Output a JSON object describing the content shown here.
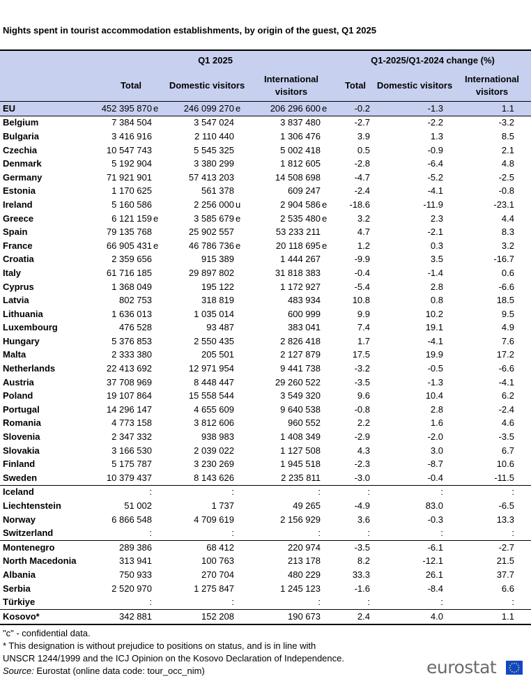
{
  "title": "Nights spent in tourist accommodation establishments, by origin of the guest, Q1 2025",
  "header": {
    "group1": "Q1 2025",
    "group2": "Q1-2025/Q1-2024 change  (%)",
    "columns": [
      "Total",
      "Domestic visitors",
      "International visitors",
      "Total",
      "Domestic visitors",
      "International visitors"
    ]
  },
  "rows": [
    {
      "country": "EU",
      "total": "452 395 870",
      "total_flag": "e",
      "dom": "246 099 270",
      "dom_flag": "e",
      "int": "206 296 600",
      "int_flag": "e",
      "ctot": "-0.2",
      "cdom": "-1.3",
      "cint": "1.1"
    },
    {
      "country": "Belgium",
      "total": "7 384 504",
      "total_flag": "",
      "dom": "3 547 024",
      "dom_flag": "",
      "int": "3 837 480",
      "int_flag": "",
      "ctot": "-2.7",
      "cdom": "-2.2",
      "cint": "-3.2"
    },
    {
      "country": "Bulgaria",
      "total": "3 416 916",
      "total_flag": "",
      "dom": "2 110 440",
      "dom_flag": "",
      "int": "1 306 476",
      "int_flag": "",
      "ctot": "3.9",
      "cdom": "1.3",
      "cint": "8.5"
    },
    {
      "country": "Czechia",
      "total": "10 547 743",
      "total_flag": "",
      "dom": "5 545 325",
      "dom_flag": "",
      "int": "5 002 418",
      "int_flag": "",
      "ctot": "0.5",
      "cdom": "-0.9",
      "cint": "2.1"
    },
    {
      "country": "Denmark",
      "total": "5 192 904",
      "total_flag": "",
      "dom": "3 380 299",
      "dom_flag": "",
      "int": "1 812 605",
      "int_flag": "",
      "ctot": "-2.8",
      "cdom": "-6.4",
      "cint": "4.8"
    },
    {
      "country": "Germany",
      "total": "71 921 901",
      "total_flag": "",
      "dom": "57 413 203",
      "dom_flag": "",
      "int": "14 508 698",
      "int_flag": "",
      "ctot": "-4.7",
      "cdom": "-5.2",
      "cint": "-2.5"
    },
    {
      "country": "Estonia",
      "total": "1 170 625",
      "total_flag": "",
      "dom": "561 378",
      "dom_flag": "",
      "int": "609 247",
      "int_flag": "",
      "ctot": "-2.4",
      "cdom": "-4.1",
      "cint": "-0.8"
    },
    {
      "country": "Ireland",
      "total": "5 160 586",
      "total_flag": "",
      "dom": "2 256 000",
      "dom_flag": "u",
      "int": "2 904 586",
      "int_flag": "e",
      "ctot": "-18.6",
      "cdom": "-11.9",
      "cint": "-23.1"
    },
    {
      "country": "Greece",
      "total": "6 121 159",
      "total_flag": "e",
      "dom": "3 585 679",
      "dom_flag": "e",
      "int": "2 535 480",
      "int_flag": "e",
      "ctot": "3.2",
      "cdom": "2.3",
      "cint": "4.4"
    },
    {
      "country": "Spain",
      "total": "79 135 768",
      "total_flag": "",
      "dom": "25 902 557",
      "dom_flag": "",
      "int": "53 233 211",
      "int_flag": "",
      "ctot": "4.7",
      "cdom": "-2.1",
      "cint": "8.3"
    },
    {
      "country": "France",
      "total": "66 905 431",
      "total_flag": "e",
      "dom": "46 786 736",
      "dom_flag": "e",
      "int": "20 118 695",
      "int_flag": "e",
      "ctot": "1.2",
      "cdom": "0.3",
      "cint": "3.2"
    },
    {
      "country": "Croatia",
      "total": "2 359 656",
      "total_flag": "",
      "dom": "915 389",
      "dom_flag": "",
      "int": "1 444 267",
      "int_flag": "",
      "ctot": "-9.9",
      "cdom": "3.5",
      "cint": "-16.7"
    },
    {
      "country": "Italy",
      "total": "61 716 185",
      "total_flag": "",
      "dom": "29 897 802",
      "dom_flag": "",
      "int": "31 818 383",
      "int_flag": "",
      "ctot": "-0.4",
      "cdom": "-1.4",
      "cint": "0.6"
    },
    {
      "country": "Cyprus",
      "total": "1 368 049",
      "total_flag": "",
      "dom": "195 122",
      "dom_flag": "",
      "int": "1 172 927",
      "int_flag": "",
      "ctot": "-5.4",
      "cdom": "2.8",
      "cint": "-6.6"
    },
    {
      "country": "Latvia",
      "total": "802 753",
      "total_flag": "",
      "dom": "318 819",
      "dom_flag": "",
      "int": "483 934",
      "int_flag": "",
      "ctot": "10.8",
      "cdom": "0.8",
      "cint": "18.5"
    },
    {
      "country": "Lithuania",
      "total": "1 636 013",
      "total_flag": "",
      "dom": "1 035 014",
      "dom_flag": "",
      "int": "600 999",
      "int_flag": "",
      "ctot": "9.9",
      "cdom": "10.2",
      "cint": "9.5"
    },
    {
      "country": "Luxembourg",
      "total": "476 528",
      "total_flag": "",
      "dom": "93 487",
      "dom_flag": "",
      "int": "383 041",
      "int_flag": "",
      "ctot": "7.4",
      "cdom": "19.1",
      "cint": "4.9"
    },
    {
      "country": "Hungary",
      "total": "5 376 853",
      "total_flag": "",
      "dom": "2 550 435",
      "dom_flag": "",
      "int": "2 826 418",
      "int_flag": "",
      "ctot": "1.7",
      "cdom": "-4.1",
      "cint": "7.6"
    },
    {
      "country": "Malta",
      "total": "2 333 380",
      "total_flag": "",
      "dom": "205 501",
      "dom_flag": "",
      "int": "2 127 879",
      "int_flag": "",
      "ctot": "17.5",
      "cdom": "19.9",
      "cint": "17.2"
    },
    {
      "country": "Netherlands",
      "total": "22 413 692",
      "total_flag": "",
      "dom": "12 971 954",
      "dom_flag": "",
      "int": "9 441 738",
      "int_flag": "",
      "ctot": "-3.2",
      "cdom": "-0.5",
      "cint": "-6.6"
    },
    {
      "country": "Austria",
      "total": "37 708 969",
      "total_flag": "",
      "dom": "8 448 447",
      "dom_flag": "",
      "int": "29 260 522",
      "int_flag": "",
      "ctot": "-3.5",
      "cdom": "-1.3",
      "cint": "-4.1"
    },
    {
      "country": "Poland",
      "total": "19 107 864",
      "total_flag": "",
      "dom": "15 558 544",
      "dom_flag": "",
      "int": "3 549 320",
      "int_flag": "",
      "ctot": "9.6",
      "cdom": "10.4",
      "cint": "6.2"
    },
    {
      "country": "Portugal",
      "total": "14 296 147",
      "total_flag": "",
      "dom": "4 655 609",
      "dom_flag": "",
      "int": "9 640 538",
      "int_flag": "",
      "ctot": "-0.8",
      "cdom": "2.8",
      "cint": "-2.4"
    },
    {
      "country": "Romania",
      "total": "4 773 158",
      "total_flag": "",
      "dom": "3 812 606",
      "dom_flag": "",
      "int": "960 552",
      "int_flag": "",
      "ctot": "2.2",
      "cdom": "1.6",
      "cint": "4.6"
    },
    {
      "country": "Slovenia",
      "total": "2 347 332",
      "total_flag": "",
      "dom": "938 983",
      "dom_flag": "",
      "int": "1 408 349",
      "int_flag": "",
      "ctot": "-2.9",
      "cdom": "-2.0",
      "cint": "-3.5"
    },
    {
      "country": "Slovakia",
      "total": "3 166 530",
      "total_flag": "",
      "dom": "2 039 022",
      "dom_flag": "",
      "int": "1 127 508",
      "int_flag": "",
      "ctot": "4.3",
      "cdom": "3.0",
      "cint": "6.7"
    },
    {
      "country": "Finland",
      "total": "5 175 787",
      "total_flag": "",
      "dom": "3 230 269",
      "dom_flag": "",
      "int": "1 945 518",
      "int_flag": "",
      "ctot": "-2.3",
      "cdom": "-8.7",
      "cint": "10.6"
    },
    {
      "country": "Sweden",
      "total": "10 379 437",
      "total_flag": "",
      "dom": "8 143 626",
      "dom_flag": "",
      "int": "2 235 811",
      "int_flag": "",
      "ctot": "-3.0",
      "cdom": "-0.4",
      "cint": "-11.5"
    },
    {
      "country": "Iceland",
      "total": ":",
      "total_flag": "",
      "dom": ":",
      "dom_flag": "",
      "int": ":",
      "int_flag": "",
      "ctot": ":",
      "cdom": ":",
      "cint": ":"
    },
    {
      "country": "Liechtenstein",
      "total": "51 002",
      "total_flag": "",
      "dom": "1 737",
      "dom_flag": "",
      "int": "49 265",
      "int_flag": "",
      "ctot": "-4.9",
      "cdom": "83.0",
      "cint": "-6.5"
    },
    {
      "country": "Norway",
      "total": "6 866 548",
      "total_flag": "",
      "dom": "4 709 619",
      "dom_flag": "",
      "int": "2 156 929",
      "int_flag": "",
      "ctot": "3.6",
      "cdom": "-0.3",
      "cint": "13.3"
    },
    {
      "country": "Switzerland",
      "total": ":",
      "total_flag": "",
      "dom": ":",
      "dom_flag": "",
      "int": ":",
      "int_flag": "",
      "ctot": ":",
      "cdom": ":",
      "cint": ":"
    },
    {
      "country": "Montenegro",
      "total": "289 386",
      "total_flag": "",
      "dom": "68 412",
      "dom_flag": "",
      "int": "220 974",
      "int_flag": "",
      "ctot": "-3.5",
      "cdom": "-6.1",
      "cint": "-2.7"
    },
    {
      "country": "North Macedonia",
      "total": "313 941",
      "total_flag": "",
      "dom": "100 763",
      "dom_flag": "",
      "int": "213 178",
      "int_flag": "",
      "ctot": "8.2",
      "cdom": "-12.1",
      "cint": "21.5"
    },
    {
      "country": "Albania",
      "total": "750 933",
      "total_flag": "",
      "dom": "270 704",
      "dom_flag": "",
      "int": "480 229",
      "int_flag": "",
      "ctot": "33.3",
      "cdom": "26.1",
      "cint": "37.7"
    },
    {
      "country": "Serbia",
      "total": "2 520 970",
      "total_flag": "",
      "dom": "1 275 847",
      "dom_flag": "",
      "int": "1 245 123",
      "int_flag": "",
      "ctot": "-1.6",
      "cdom": "-8.4",
      "cint": "6.6"
    },
    {
      "country": "Türkiye",
      "total": ":",
      "total_flag": "",
      "dom": ":",
      "dom_flag": "",
      "int": ":",
      "int_flag": "",
      "ctot": ":",
      "cdom": ":",
      "cint": ":"
    },
    {
      "country": "Kosovo*",
      "total": "342 881",
      "total_flag": "",
      "dom": "152 208",
      "dom_flag": "",
      "int": "190 673",
      "int_flag": "",
      "ctot": "2.4",
      "cdom": "4.0",
      "cint": "1.1"
    }
  ],
  "notes": {
    "confidential": "\"c\" - confidential data.",
    "kosovo_line1": "* This designation is without prejudice to positions on status, and is in line with",
    "kosovo_line2": "UNSCR 1244/1999 and the ICJ Opinion on the Kosovo Declaration of Independence.",
    "source_label": "Source:",
    "source_text": " Eurostat (online data code: tour_occ_nim)"
  },
  "logo": {
    "text": "eurostat",
    "icon": "eu-flag-icon",
    "flag_color": "#0e47cb",
    "star_color": "#ffdd00"
  },
  "colors": {
    "header_bg": "#c8d0f0"
  }
}
